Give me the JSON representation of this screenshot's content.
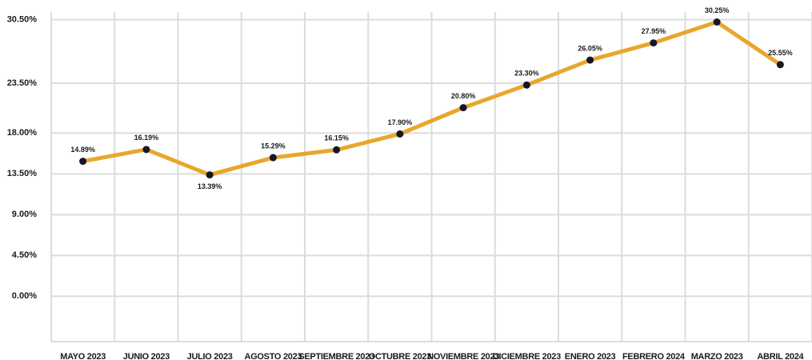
{
  "chart_data": {
    "type": "line",
    "categories": [
      "MAYO 2023",
      "JUNIO 2023",
      "JULIO 2023",
      "AGOSTO 2023",
      "SEPTIEMBRE 2023",
      "OCTUBRE 2023",
      "NOVIEMBRE 2023",
      "DICIEMBRE 2023",
      "ENERO 2023",
      "FEBRERO 2024",
      "MARZO 2023",
      "ABRIL 2024"
    ],
    "series": [
      {
        "color": "#e8a72c",
        "marker_color": "#16162a",
        "values": [
          14.89,
          16.19,
          13.39,
          15.29,
          16.15,
          17.9,
          20.8,
          23.3,
          26.05,
          27.95,
          30.25,
          25.55
        ],
        "value_labels": [
          "14.89%",
          "16.19%",
          "13.39%",
          "15.29%",
          "16.15%",
          "17.90%",
          "20.80%",
          "23.30%",
          "26.05%",
          "27.95%",
          "30.25%",
          "25.55%"
        ]
      }
    ],
    "ylim": [
      -5,
      31
    ],
    "yticks": [
      {
        "value": 30.5,
        "label": "30.50%"
      },
      {
        "value": 23.5,
        "label": "23.50%"
      },
      {
        "value": 18,
        "label": "18.00%"
      },
      {
        "value": 13.5,
        "label": "13.50%"
      },
      {
        "value": 9,
        "label": "9.00%"
      },
      {
        "value": 4.5,
        "label": "4.50%"
      },
      {
        "value": 0,
        "label": "0.00%"
      }
    ],
    "grid": true
  }
}
